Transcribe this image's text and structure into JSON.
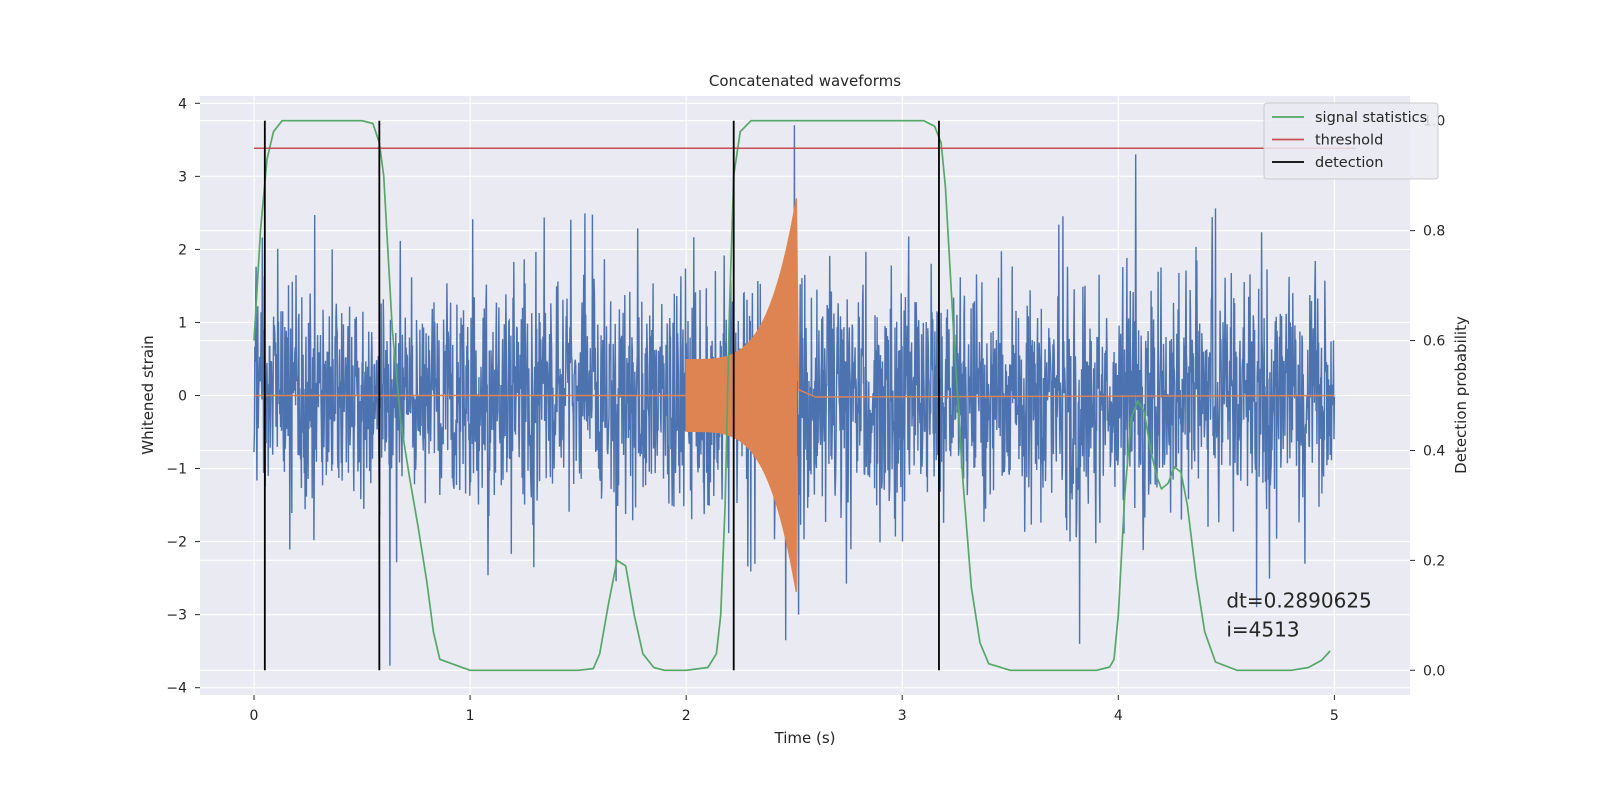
{
  "chart_data": {
    "type": "line",
    "title": "Concatenated waveforms",
    "xlabel": "Time (s)",
    "ylabel_left": "Whitened strain",
    "ylabel_right": "Detection probability",
    "xlim": [
      -0.25,
      5.35
    ],
    "ylim_left": [
      -4.1,
      4.1
    ],
    "ylim_right": [
      -0.045,
      1.045
    ],
    "xticks": [
      0,
      1,
      2,
      3,
      4,
      5
    ],
    "xtick_labels": [
      "0",
      "1",
      "2",
      "3",
      "4",
      "5"
    ],
    "yticks_left": [
      4,
      3,
      2,
      1,
      0,
      -1,
      -2,
      -3,
      -4
    ],
    "ytick_labels_left": [
      "4",
      "3",
      "2",
      "1",
      "0",
      "−1",
      "−2",
      "−3",
      "−4"
    ],
    "yticks_right": [
      1.0,
      0.8,
      0.6,
      0.4,
      0.2,
      0.0
    ],
    "ytick_labels_right": [
      "1.0",
      "0.8",
      "0.6",
      "0.4",
      "0.2",
      "0.0"
    ],
    "grid": true,
    "legend_position": "top-right",
    "series": [
      {
        "name": "signal statistics",
        "axis": "right",
        "color": "#55a868",
        "x": [
          0.0,
          0.03,
          0.06,
          0.09,
          0.13,
          0.2,
          0.5,
          0.55,
          0.58,
          0.6,
          0.64,
          0.68,
          0.72,
          0.76,
          0.8,
          0.83,
          0.86,
          1.0,
          1.5,
          1.57,
          1.6,
          1.64,
          1.68,
          1.72,
          1.76,
          1.8,
          1.85,
          1.9,
          2.0,
          2.1,
          2.14,
          2.16,
          2.18,
          2.2,
          2.22,
          2.25,
          2.3,
          2.5,
          3.1,
          3.15,
          3.18,
          3.2,
          3.24,
          3.28,
          3.32,
          3.36,
          3.4,
          3.5,
          3.9,
          3.96,
          3.98,
          4.0,
          4.03,
          4.06,
          4.09,
          4.12,
          4.15,
          4.18,
          4.2,
          4.23,
          4.26,
          4.29,
          4.32,
          4.36,
          4.4,
          4.45,
          4.55,
          4.8,
          4.88,
          4.94,
          4.98
        ],
        "y": [
          0.6,
          0.8,
          0.93,
          0.98,
          1.0,
          1.0,
          1.0,
          0.995,
          0.96,
          0.9,
          0.62,
          0.45,
          0.35,
          0.26,
          0.16,
          0.07,
          0.02,
          0.0,
          0.0,
          0.003,
          0.03,
          0.12,
          0.2,
          0.19,
          0.1,
          0.03,
          0.005,
          0.0,
          0.0,
          0.005,
          0.03,
          0.1,
          0.3,
          0.65,
          0.9,
          0.98,
          1.0,
          1.0,
          1.0,
          0.99,
          0.96,
          0.88,
          0.6,
          0.35,
          0.15,
          0.05,
          0.012,
          0.0,
          0.0,
          0.006,
          0.02,
          0.1,
          0.32,
          0.46,
          0.49,
          0.47,
          0.4,
          0.35,
          0.33,
          0.34,
          0.37,
          0.36,
          0.3,
          0.17,
          0.07,
          0.015,
          0.0,
          0.0,
          0.005,
          0.018,
          0.035
        ]
      },
      {
        "name": "threshold",
        "axis": "right",
        "color": "#c44e52",
        "x": [
          0.0,
          5.1
        ],
        "y": [
          0.95,
          0.95
        ]
      },
      {
        "name": "detection",
        "axis": "right",
        "color": "#000000",
        "type": "vlines",
        "x": [
          0.05,
          0.58,
          2.22,
          3.17
        ],
        "ymin": 0.0,
        "ymax": 1.0
      },
      {
        "name": "",
        "axis": "left",
        "color": "#4c72b0",
        "type": "noise",
        "t_range": [
          0.0,
          5.0
        ],
        "base_amplitude": 0.75,
        "typical_max": 2.3,
        "extremes": [
          {
            "t": 2.5,
            "y": 3.7
          },
          {
            "t": 4.08,
            "y": 3.3
          },
          {
            "t": 0.63,
            "y": -3.7
          },
          {
            "t": 2.46,
            "y": -3.35
          },
          {
            "t": 3.82,
            "y": -3.4
          },
          {
            "t": 2.52,
            "y": -3.0
          },
          {
            "t": 4.64,
            "y": -2.9
          }
        ]
      },
      {
        "name": "",
        "axis": "left",
        "color": "#dd8452",
        "type": "chirp",
        "t_start": 2.0,
        "t_merger": 2.51,
        "amp_start": 0.5,
        "amp_merger": 2.7,
        "ringdown": [
          {
            "t": 2.52,
            "y": 0.08
          },
          {
            "t": 2.6,
            "y": 0.02
          }
        ],
        "baseline": 0.0
      }
    ],
    "annotations": [
      {
        "text": "dt=0.2890625",
        "x": 4.5,
        "y": -2.9
      },
      {
        "text": " i=4513",
        "x": 4.5,
        "y": -3.3
      }
    ],
    "colors": {
      "background": "#eaeaf2",
      "grid": "#ffffff",
      "figure": "#ffffff"
    }
  }
}
